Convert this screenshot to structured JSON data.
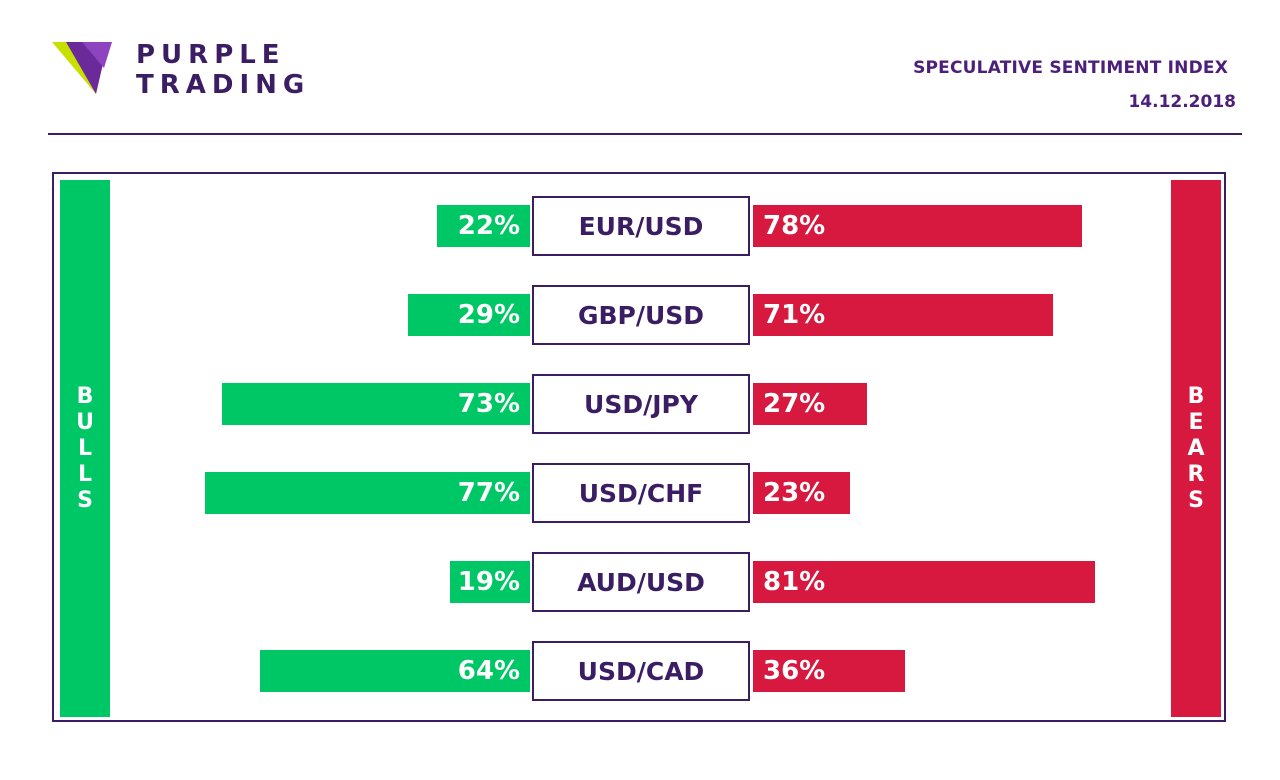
{
  "brand": {
    "line1": "PURPLE",
    "line2": "TRADING",
    "logo_icon": "purple-trading-logo-icon"
  },
  "header": {
    "title": "SPECULATIVE SENTIMENT INDEX",
    "date": "14.12.2018"
  },
  "sides": {
    "bulls": "BULLS",
    "bears": "BEARS"
  },
  "colors": {
    "bulls": "#00c766",
    "bears": "#d8193f",
    "brand": "#3a1d62",
    "accent": "#4b1f7a"
  },
  "chart_data": {
    "type": "bar",
    "categories": [
      "EUR/USD",
      "GBP/USD",
      "USD/JPY",
      "USD/CHF",
      "AUD/USD",
      "USD/CAD"
    ],
    "series": [
      {
        "name": "BULLS",
        "values": [
          22,
          29,
          73,
          77,
          19,
          64
        ],
        "labels": [
          "22%",
          "29%",
          "73%",
          "77%",
          "19%",
          "64%"
        ]
      },
      {
        "name": "BEARS",
        "values": [
          78,
          71,
          27,
          23,
          81,
          36
        ],
        "labels": [
          "78%",
          "71%",
          "27%",
          "23%",
          "81%",
          "36%"
        ]
      }
    ],
    "unit": "%"
  }
}
